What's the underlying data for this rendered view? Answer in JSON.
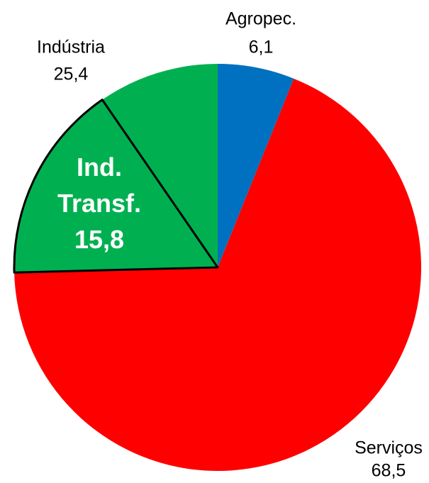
{
  "chart_data": {
    "type": "pie",
    "categories": [
      "Agropec.",
      "Serviços",
      "Indústria"
    ],
    "values": [
      6.1,
      68.5,
      25.4
    ],
    "value_labels": [
      "6,1",
      "68,5",
      "25,4"
    ],
    "colors": [
      "#0070c0",
      "#ff0000",
      "#00b050"
    ],
    "sub_slice": {
      "name": "Ind. Transf.",
      "value": 15.8,
      "value_label": "15,8"
    }
  }
}
